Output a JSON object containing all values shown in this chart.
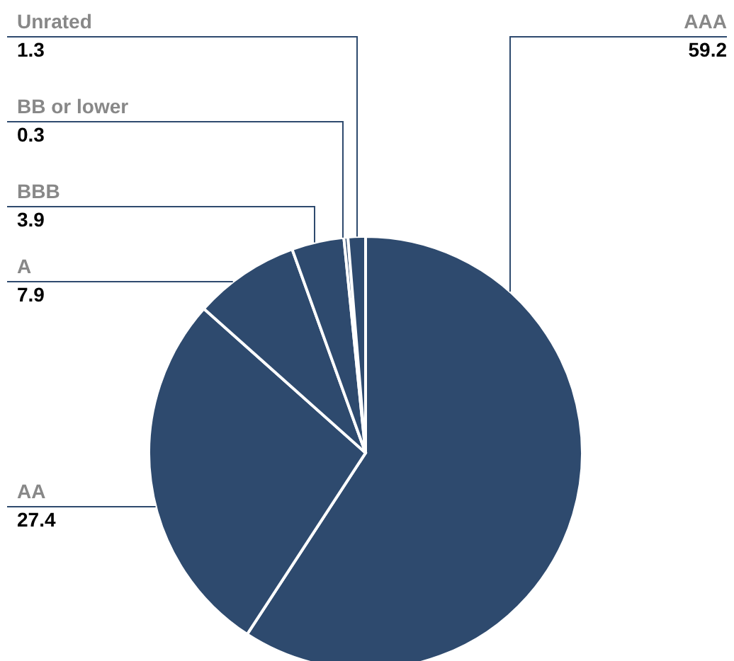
{
  "chart_data": {
    "type": "pie",
    "categories": [
      "AAA",
      "AA",
      "A",
      "BBB",
      "BB or lower",
      "Unrated"
    ],
    "values": [
      59.2,
      27.4,
      7.9,
      3.9,
      0.3,
      1.3
    ],
    "colors": [
      "#2e4a6e",
      "#2e4a6e",
      "#2e4a6e",
      "#2e4a6e",
      "#2e4a6e",
      "#2e4a6e"
    ],
    "data_labels": true
  }
}
